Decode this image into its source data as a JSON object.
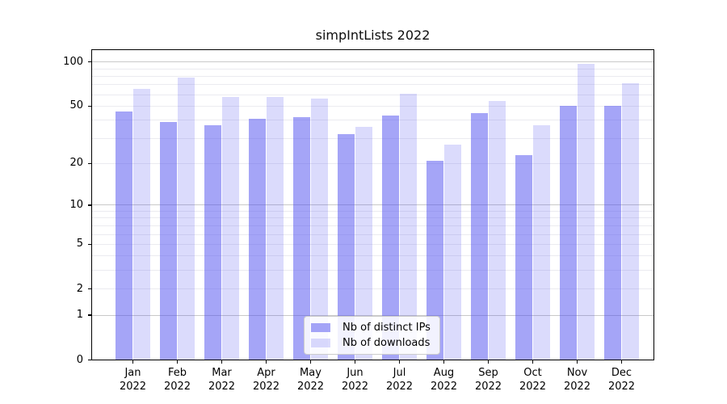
{
  "chart_data": {
    "type": "bar",
    "title": "simpIntLists 2022",
    "categories": [
      "Jan 2022",
      "Feb 2022",
      "Mar 2022",
      "Apr 2022",
      "May 2022",
      "Jun 2022",
      "Jul 2022",
      "Aug 2022",
      "Sep 2022",
      "Oct 2022",
      "Nov 2022",
      "Dec 2022"
    ],
    "series": [
      {
        "name": "Nb of distinct IPs",
        "color": "rgba(75,75,240,0.50)",
        "values": [
          46,
          39,
          37,
          41,
          42,
          32,
          43,
          21,
          45,
          23,
          50,
          50
        ]
      },
      {
        "name": "Nb of downloads",
        "color": "rgba(75,75,240,0.20)",
        "values": [
          66,
          78,
          58,
          58,
          56,
          36,
          61,
          27,
          54,
          37,
          97,
          72
        ]
      }
    ],
    "xlabel": "",
    "ylabel": "",
    "yscale": "log1p",
    "ylim": [
      0,
      122
    ],
    "yticks": [
      0,
      1,
      2,
      5,
      10,
      20,
      50,
      100
    ],
    "gridlines": {
      "major": [
        1,
        10,
        100
      ],
      "minor": [
        2,
        3,
        4,
        5,
        6,
        7,
        8,
        9,
        20,
        30,
        40,
        50,
        60,
        70,
        80,
        90
      ]
    },
    "grid": "on",
    "legend_position": "lower center"
  },
  "colors": {
    "background": "#ffffff",
    "axis": "#000000",
    "grid_major": "#c9c9c9",
    "grid_minor": "#ebebf0",
    "bar_dark": "rgba(75,75,240,0.50)",
    "bar_light": "rgba(75,75,240,0.20)"
  }
}
